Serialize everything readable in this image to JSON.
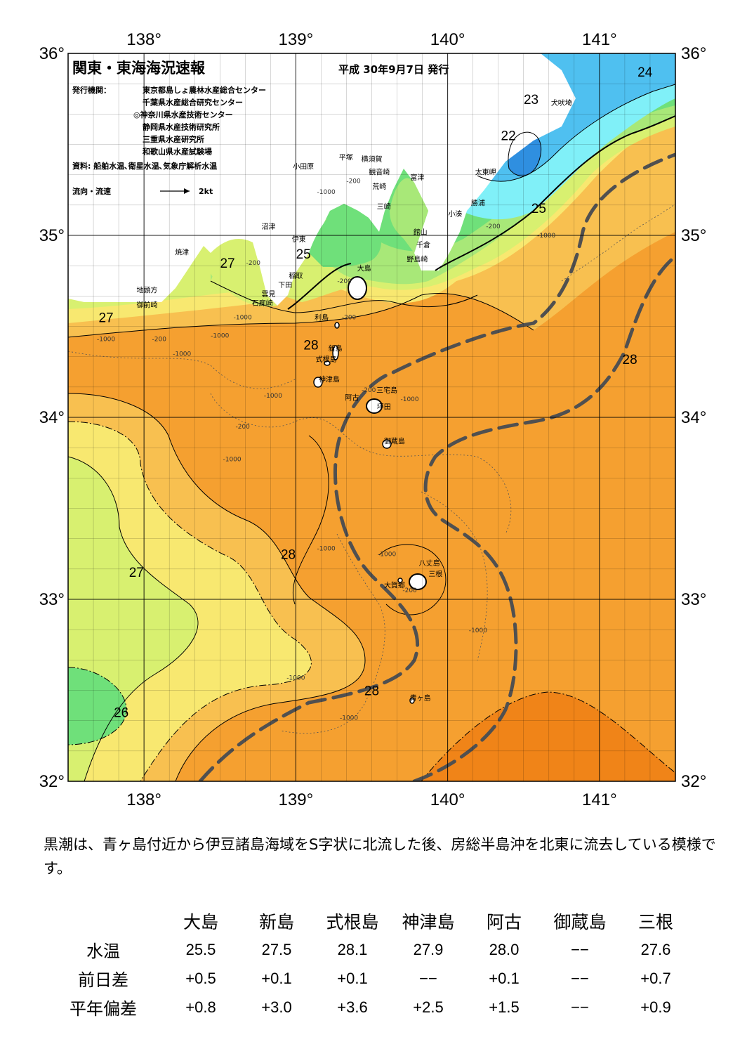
{
  "header": {
    "title": "関東・東海海況速報",
    "date": "平成 30年9月7日 発行",
    "issuer_label": "発行機関：",
    "issuers": [
      "東京都島しょ農林水産総合センター",
      "千葉県水産総合研究センター",
      "◎神奈川県水産技術センター",
      "静岡県水産技術研究所",
      "三重県水産研究所",
      "和歌山県水産試験場"
    ],
    "sources": "資料: 船舶水温､衛星水温､気象庁解析水温",
    "flow_legend_label": "流向・流速",
    "flow_legend_value": "2kt"
  },
  "axes": {
    "lon_ticks": [
      "138°",
      "139°",
      "140°",
      "141°"
    ],
    "lat_ticks": [
      "36°",
      "35°",
      "34°",
      "33°",
      "32°"
    ]
  },
  "map": {
    "lon_range": [
      137.5,
      141.5
    ],
    "lat_range": [
      32,
      36
    ],
    "colors": {
      "land": "#ffffff",
      "t22": "#2f8fe0",
      "t23": "#4fc0f0",
      "t24": "#80f0f8",
      "t25": "#6fe07a",
      "t26": "#a8e878",
      "t27": "#d8f070",
      "t27b": "#f8e870",
      "t28": "#f8c050",
      "t28b": "#f5a030",
      "t29": "#f08418",
      "kuroshio": "#505050"
    },
    "temperature_labels": [
      {
        "text": "24",
        "lon": 141.3,
        "lat": 35.9
      },
      {
        "text": "23",
        "lon": 140.55,
        "lat": 35.75
      },
      {
        "text": "22",
        "lon": 140.4,
        "lat": 35.55
      },
      {
        "text": "25",
        "lon": 140.6,
        "lat": 35.15
      },
      {
        "text": "25",
        "lon": 139.05,
        "lat": 34.9
      },
      {
        "text": "27",
        "lon": 138.55,
        "lat": 34.85
      },
      {
        "text": "27",
        "lon": 137.75,
        "lat": 34.55
      },
      {
        "text": "28",
        "lon": 139.1,
        "lat": 34.4
      },
      {
        "text": "28",
        "lon": 141.2,
        "lat": 34.32
      },
      {
        "text": "28",
        "lon": 138.95,
        "lat": 33.25
      },
      {
        "text": "27",
        "lon": 137.95,
        "lat": 33.15
      },
      {
        "text": "28",
        "lon": 139.5,
        "lat": 32.5
      },
      {
        "text": "26",
        "lon": 137.85,
        "lat": 32.38
      }
    ],
    "place_names": [
      {
        "text": "犬吠埼",
        "lon": 140.75,
        "lat": 35.73
      },
      {
        "text": "太東岬",
        "lon": 140.25,
        "lat": 35.35
      },
      {
        "text": "勝浦",
        "lon": 140.2,
        "lat": 35.18
      },
      {
        "text": "小湊",
        "lon": 140.05,
        "lat": 35.12
      },
      {
        "text": "館山",
        "lon": 139.82,
        "lat": 35.02
      },
      {
        "text": "千倉",
        "lon": 139.84,
        "lat": 34.95
      },
      {
        "text": "野島崎",
        "lon": 139.8,
        "lat": 34.87
      },
      {
        "text": "富津",
        "lon": 139.8,
        "lat": 35.32
      },
      {
        "text": "横須賀",
        "lon": 139.5,
        "lat": 35.42
      },
      {
        "text": "平塚",
        "lon": 139.33,
        "lat": 35.43
      },
      {
        "text": "観音崎",
        "lon": 139.55,
        "lat": 35.35
      },
      {
        "text": "荒崎",
        "lon": 139.55,
        "lat": 35.27
      },
      {
        "text": "三崎",
        "lon": 139.58,
        "lat": 35.16
      },
      {
        "text": "小田原",
        "lon": 139.05,
        "lat": 35.38
      },
      {
        "text": "沼津",
        "lon": 138.82,
        "lat": 35.05
      },
      {
        "text": "伊東",
        "lon": 139.02,
        "lat": 34.98
      },
      {
        "text": "稲取",
        "lon": 139.0,
        "lat": 34.78
      },
      {
        "text": "下田",
        "lon": 138.93,
        "lat": 34.73
      },
      {
        "text": "雲見",
        "lon": 138.82,
        "lat": 34.68
      },
      {
        "text": "石廊崎",
        "lon": 138.78,
        "lat": 34.63
      },
      {
        "text": "焼津",
        "lon": 138.25,
        "lat": 34.91
      },
      {
        "text": "地頭方",
        "lon": 138.02,
        "lat": 34.7
      },
      {
        "text": "御前崎",
        "lon": 138.02,
        "lat": 34.62
      },
      {
        "text": "大島",
        "lon": 139.45,
        "lat": 34.82
      },
      {
        "text": "利島",
        "lon": 139.17,
        "lat": 34.55
      },
      {
        "text": "新島",
        "lon": 139.26,
        "lat": 34.38
      },
      {
        "text": "式根島",
        "lon": 139.2,
        "lat": 34.32
      },
      {
        "text": "神津島",
        "lon": 139.22,
        "lat": 34.21
      },
      {
        "text": "三宅島",
        "lon": 139.6,
        "lat": 34.15
      },
      {
        "text": "阿古",
        "lon": 139.37,
        "lat": 34.11
      },
      {
        "text": "坪田",
        "lon": 139.58,
        "lat": 34.06
      },
      {
        "text": "御蔵島",
        "lon": 139.65,
        "lat": 33.87
      },
      {
        "text": "八丈島",
        "lon": 139.88,
        "lat": 33.2
      },
      {
        "text": "三根",
        "lon": 139.92,
        "lat": 33.14
      },
      {
        "text": "大賀郷",
        "lon": 139.65,
        "lat": 33.08
      },
      {
        "text": "青ヶ島",
        "lon": 139.82,
        "lat": 32.46
      }
    ],
    "depth_labels": [
      {
        "text": "-1000",
        "lon": 137.75,
        "lat": 34.43
      },
      {
        "text": "-200",
        "lon": 138.1,
        "lat": 34.43
      },
      {
        "text": "-1000",
        "lon": 138.25,
        "lat": 34.35
      },
      {
        "text": "-1000",
        "lon": 138.5,
        "lat": 34.45
      },
      {
        "text": "-1000",
        "lon": 138.85,
        "lat": 34.12
      },
      {
        "text": "-200",
        "lon": 138.65,
        "lat": 33.95
      },
      {
        "text": "-1000",
        "lon": 138.58,
        "lat": 33.77
      },
      {
        "text": "-1000",
        "lon": 139.2,
        "lat": 33.28
      },
      {
        "text": "-1000",
        "lon": 139.6,
        "lat": 33.25
      },
      {
        "text": "-200",
        "lon": 139.75,
        "lat": 33.05
      },
      {
        "text": "-1000",
        "lon": 140.2,
        "lat": 32.83
      },
      {
        "text": "-1000",
        "lon": 139.0,
        "lat": 32.57
      },
      {
        "text": "-1000",
        "lon": 139.35,
        "lat": 32.35
      },
      {
        "text": "-1000",
        "lon": 140.65,
        "lat": 35.0
      },
      {
        "text": "-200",
        "lon": 140.3,
        "lat": 35.05
      },
      {
        "text": "-1000",
        "lon": 139.2,
        "lat": 35.24
      },
      {
        "text": "-200",
        "lon": 139.38,
        "lat": 35.3
      },
      {
        "text": "-200",
        "lon": 139.32,
        "lat": 34.75
      },
      {
        "text": "-200",
        "lon": 139.35,
        "lat": 34.55
      },
      {
        "text": "-200",
        "lon": 138.72,
        "lat": 34.85
      },
      {
        "text": "-1000",
        "lon": 138.65,
        "lat": 34.55
      },
      {
        "text": "-200",
        "lon": 139.48,
        "lat": 34.15
      },
      {
        "text": "-1000",
        "lon": 139.75,
        "lat": 34.1
      }
    ]
  },
  "summary": "黒潮は、青ヶ島付近から伊豆諸島海域をS字状に北流した後、房総半島沖を北東に流去している模様です。",
  "table": {
    "stations": [
      "大島",
      "新島",
      "式根島",
      "神津島",
      "阿古",
      "御蔵島",
      "三根"
    ],
    "rows": [
      {
        "label": "水温",
        "values": [
          "25.5",
          "27.5",
          "28.1",
          "27.9",
          "28.0",
          "−−",
          "27.6"
        ]
      },
      {
        "label": "前日差",
        "values": [
          "+0.5",
          "+0.1",
          "+0.1",
          "−−",
          "+0.1",
          "−−",
          "+0.7"
        ]
      },
      {
        "label": "平年偏差",
        "values": [
          "+0.8",
          "+3.0",
          "+3.6",
          "+2.5",
          "+1.5",
          "−−",
          "+0.9"
        ]
      }
    ]
  }
}
